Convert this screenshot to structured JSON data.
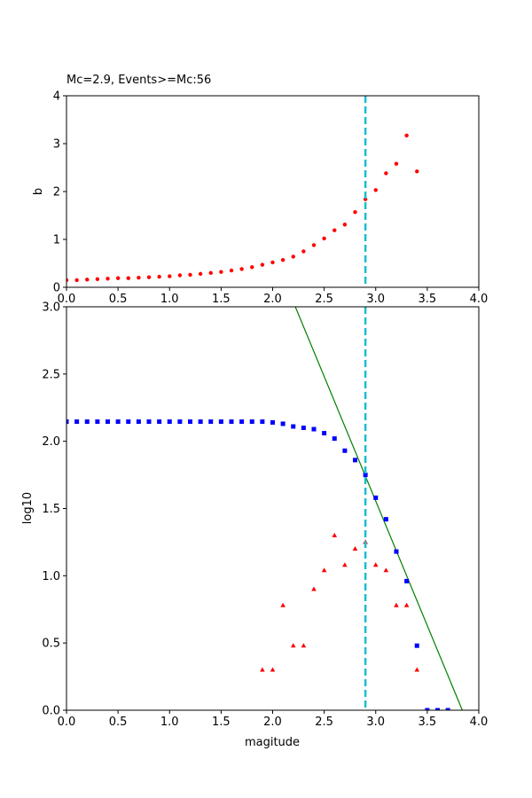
{
  "colors": {
    "b_points": "#ff0000",
    "cumulative": "#0000ff",
    "incremental": "#ff0000",
    "fit_line": "#008000",
    "mc_line": "#17becf",
    "axes": "#000000"
  },
  "chart_data": [
    {
      "type": "scatter",
      "title": "Mc=2.9, Events>=Mc:56",
      "xlabel": "",
      "ylabel": "b",
      "xlim": [
        0,
        4
      ],
      "ylim": [
        0,
        4
      ],
      "xticks": [
        "0.0",
        "0.5",
        "1.0",
        "1.5",
        "2.0",
        "2.5",
        "3.0",
        "3.5",
        "4.0"
      ],
      "yticks": [
        "0",
        "1",
        "2",
        "3",
        "4"
      ],
      "grid": false,
      "mc": 2.9,
      "series": [
        {
          "marker": "circle",
          "color": "#ff0000",
          "x": [
            0.0,
            0.1,
            0.2,
            0.3,
            0.4,
            0.5,
            0.6,
            0.7,
            0.8,
            0.9,
            1.0,
            1.1,
            1.2,
            1.3,
            1.4,
            1.5,
            1.6,
            1.7,
            1.8,
            1.9,
            2.0,
            2.1,
            2.2,
            2.3,
            2.4,
            2.5,
            2.6,
            2.7,
            2.8,
            2.9,
            3.0,
            3.1,
            3.2,
            3.3,
            3.4
          ],
          "y": [
            0.15,
            0.15,
            0.16,
            0.17,
            0.18,
            0.19,
            0.19,
            0.2,
            0.21,
            0.22,
            0.23,
            0.25,
            0.26,
            0.28,
            0.3,
            0.32,
            0.35,
            0.38,
            0.42,
            0.47,
            0.52,
            0.57,
            0.64,
            0.75,
            0.88,
            1.02,
            1.19,
            1.31,
            1.57,
            1.84,
            2.03,
            2.38,
            2.58,
            3.17,
            2.42
          ]
        }
      ]
    },
    {
      "type": "scatter",
      "title": "",
      "xlabel": "magitude",
      "ylabel": "log10",
      "xlim": [
        0,
        4
      ],
      "ylim": [
        0,
        3
      ],
      "xticks": [
        "0.0",
        "0.5",
        "1.0",
        "1.5",
        "2.0",
        "2.5",
        "3.0",
        "3.5",
        "4.0"
      ],
      "yticks": [
        "0.0",
        "0.5",
        "1.0",
        "1.5",
        "2.0",
        "2.5",
        "3.0"
      ],
      "grid": false,
      "mc": 2.9,
      "series": [
        {
          "marker": "square",
          "color": "#0000ff",
          "x": [
            0.0,
            0.1,
            0.2,
            0.3,
            0.4,
            0.5,
            0.6,
            0.7,
            0.8,
            0.9,
            1.0,
            1.1,
            1.2,
            1.3,
            1.4,
            1.5,
            1.6,
            1.7,
            1.8,
            1.9,
            2.0,
            2.1,
            2.2,
            2.3,
            2.4,
            2.5,
            2.6,
            2.7,
            2.8,
            2.9,
            3.0,
            3.1,
            3.2,
            3.3,
            3.4,
            3.5,
            3.6,
            3.7
          ],
          "y": [
            2.146,
            2.146,
            2.146,
            2.146,
            2.146,
            2.146,
            2.146,
            2.146,
            2.146,
            2.146,
            2.146,
            2.146,
            2.146,
            2.146,
            2.146,
            2.146,
            2.146,
            2.146,
            2.146,
            2.146,
            2.14,
            2.13,
            2.11,
            2.1,
            2.09,
            2.06,
            2.02,
            1.93,
            1.86,
            1.75,
            1.58,
            1.42,
            1.18,
            0.96,
            0.48,
            0.0,
            0.0,
            0.0
          ]
        },
        {
          "marker": "triangle",
          "color": "#ff0000",
          "x": [
            1.9,
            2.0,
            2.1,
            2.2,
            2.3,
            2.4,
            2.5,
            2.6,
            2.7,
            2.8,
            2.9,
            3.0,
            3.1,
            3.2,
            3.3,
            3.4
          ],
          "y": [
            0.3,
            0.3,
            0.78,
            0.48,
            0.48,
            0.9,
            1.04,
            1.3,
            1.08,
            1.2,
            1.25,
            1.08,
            1.04,
            0.78,
            0.78,
            0.3
          ]
        }
      ],
      "fit_line": {
        "color": "#008000",
        "x": [
          2.22,
          3.84
        ],
        "y": [
          3.0,
          0.0
        ]
      }
    }
  ]
}
